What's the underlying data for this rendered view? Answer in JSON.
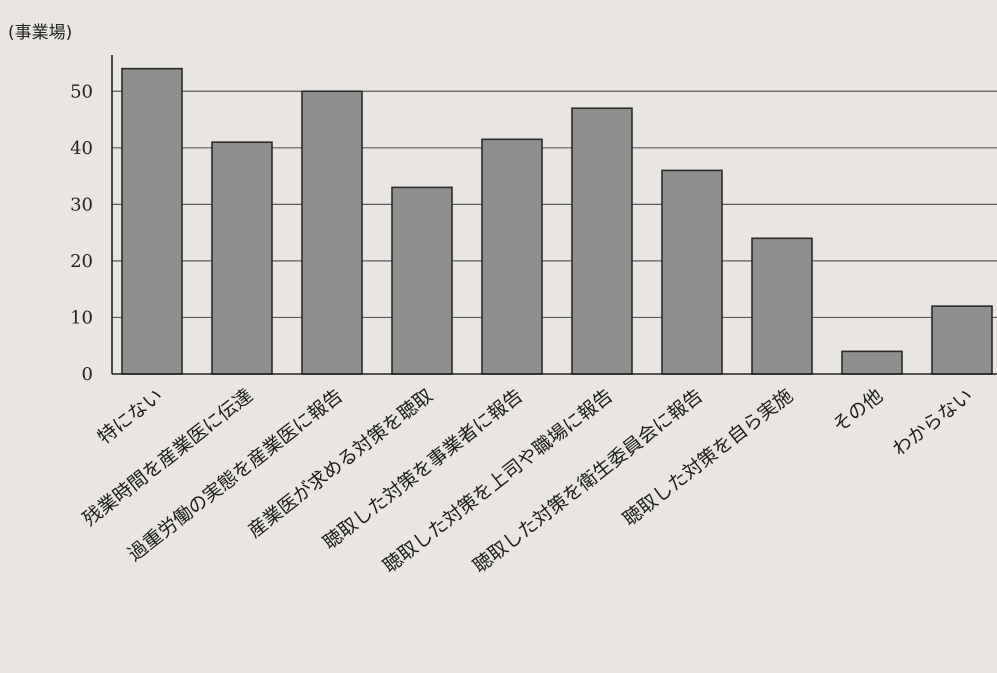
{
  "chart_data": {
    "type": "bar",
    "title": "",
    "ylabel": "(事業場)",
    "xlabel": "",
    "ylim": [
      0,
      55
    ],
    "yticks": [
      0,
      10,
      20,
      30,
      40,
      50
    ],
    "grid": true,
    "categories": [
      "特にない",
      "残業時間を産業医に伝達",
      "過重労働の実態を産業医に報告",
      "産業医が求める対策を聴取",
      "聴取した対策を事業者に報告",
      "聴取した対策を上司や職場に報告",
      "聴取した対策を衛生委員会に報告",
      "聴取した対策を自ら実施",
      "その他",
      "わからない"
    ],
    "values": [
      54,
      41,
      50,
      33,
      41.5,
      47,
      36,
      24,
      4,
      12
    ],
    "bar_color": "#8f8f8f"
  }
}
